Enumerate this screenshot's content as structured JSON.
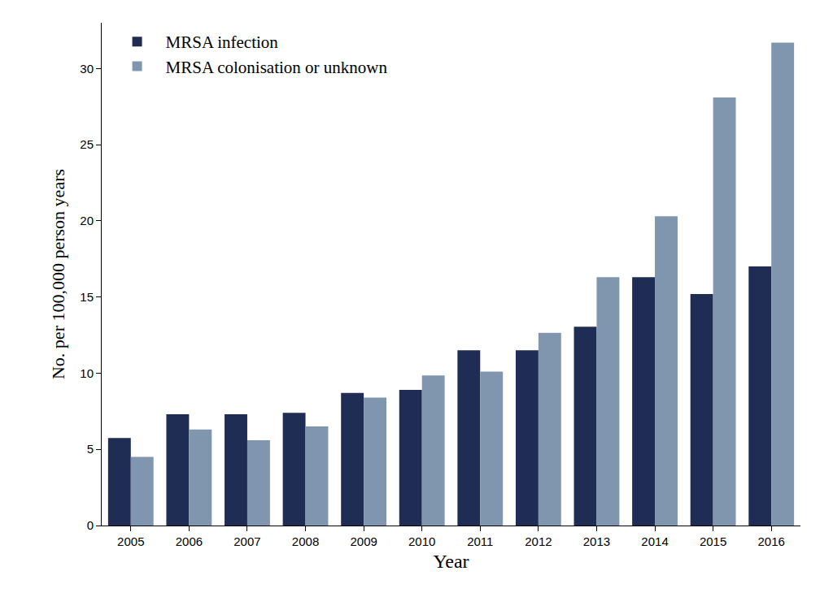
{
  "chart_data": {
    "type": "bar",
    "x_label": "Year",
    "y_label": "No. per 100,000 person years",
    "categories": [
      "2005",
      "2006",
      "2007",
      "2008",
      "2009",
      "2010",
      "2011",
      "2012",
      "2013",
      "2014",
      "2015",
      "2016"
    ],
    "series": [
      {
        "name": "MRSA infection",
        "color": "#1f2d54",
        "values": [
          5.75,
          7.3,
          7.3,
          7.4,
          8.7,
          8.9,
          11.5,
          11.5,
          13.05,
          16.3,
          15.2,
          17.0
        ]
      },
      {
        "name": "MRSA colonisation or unknown",
        "color": "#7f96ae",
        "values": [
          4.5,
          6.3,
          5.6,
          6.5,
          8.4,
          9.85,
          10.1,
          12.65,
          16.3,
          20.3,
          28.1,
          31.7
        ]
      }
    ],
    "ylim": [
      0,
      33
    ],
    "yticks": [
      0,
      5,
      10,
      15,
      20,
      25,
      30
    ],
    "grid": false,
    "legend": "top-left"
  }
}
